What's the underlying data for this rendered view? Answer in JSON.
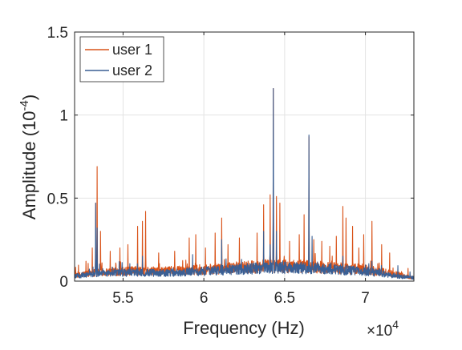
{
  "chart_data": {
    "type": "line",
    "title": "",
    "xlabel": "Frequency (Hz)",
    "x_multiplier_label": "×10",
    "x_multiplier_exponent": "4",
    "ylabel_main": "Amplitude (10",
    "ylabel_exponent": "-4",
    "ylabel_close": ")",
    "xlim": [
      52000,
      73000
    ],
    "ylim": [
      0,
      1.5
    ],
    "y_unit_scale": "1e-4",
    "x_ticks": [
      55000,
      60000,
      65000,
      70000
    ],
    "x_tick_labels": [
      "5.5",
      "6",
      "6.5",
      "7"
    ],
    "y_ticks": [
      0,
      0.5,
      1,
      1.5
    ],
    "y_tick_labels": [
      "0",
      "0.5",
      "1",
      "1.5"
    ],
    "grid": true,
    "legend_position": "top-left",
    "colors": {
      "user 1": "#D95319",
      "user 2": "#3A5F94"
    },
    "series": [
      {
        "name": "user 1",
        "color": "#D95319",
        "baseline": [
          [
            52000,
            0.03
          ],
          [
            53000,
            0.05
          ],
          [
            55000,
            0.06
          ],
          [
            58000,
            0.06
          ],
          [
            60000,
            0.07
          ],
          [
            62000,
            0.08
          ],
          [
            64000,
            0.09
          ],
          [
            66000,
            0.09
          ],
          [
            68000,
            0.08
          ],
          [
            70000,
            0.07
          ],
          [
            72000,
            0.04
          ],
          [
            73000,
            0.02
          ]
        ],
        "peaks": [
          [
            52700,
            0.12
          ],
          [
            53100,
            0.2
          ],
          [
            53300,
            0.47
          ],
          [
            53400,
            0.69
          ],
          [
            53600,
            0.3
          ],
          [
            54200,
            0.18
          ],
          [
            54800,
            0.2
          ],
          [
            55300,
            0.22
          ],
          [
            55900,
            0.33
          ],
          [
            56200,
            0.36
          ],
          [
            56400,
            0.42
          ],
          [
            57200,
            0.17
          ],
          [
            58200,
            0.18
          ],
          [
            59100,
            0.26
          ],
          [
            59500,
            0.28
          ],
          [
            60100,
            0.2
          ],
          [
            60700,
            0.29
          ],
          [
            61100,
            0.38
          ],
          [
            61500,
            0.22
          ],
          [
            62200,
            0.26
          ],
          [
            63300,
            0.29
          ],
          [
            63700,
            0.46
          ],
          [
            64100,
            0.52
          ],
          [
            64300,
            1.16
          ],
          [
            64500,
            0.51
          ],
          [
            64700,
            0.47
          ],
          [
            65300,
            0.24
          ],
          [
            65900,
            0.28
          ],
          [
            66200,
            0.4
          ],
          [
            66500,
            0.87
          ],
          [
            66800,
            0.25
          ],
          [
            67300,
            0.24
          ],
          [
            67800,
            0.21
          ],
          [
            68200,
            0.27
          ],
          [
            68600,
            0.45
          ],
          [
            68800,
            0.38
          ],
          [
            69200,
            0.33
          ],
          [
            69600,
            0.2
          ],
          [
            69900,
            0.28
          ],
          [
            70400,
            0.36
          ],
          [
            71000,
            0.22
          ],
          [
            71500,
            0.17
          ]
        ]
      },
      {
        "name": "user 2",
        "color": "#3A5F94",
        "baseline": [
          [
            52000,
            0.03
          ],
          [
            53000,
            0.04
          ],
          [
            55000,
            0.05
          ],
          [
            58000,
            0.05
          ],
          [
            60000,
            0.06
          ],
          [
            62000,
            0.07
          ],
          [
            64000,
            0.08
          ],
          [
            66000,
            0.08
          ],
          [
            68000,
            0.07
          ],
          [
            70000,
            0.06
          ],
          [
            72000,
            0.03
          ],
          [
            73000,
            0.02
          ]
        ],
        "peaks": [
          [
            53300,
            0.47
          ],
          [
            53400,
            0.32
          ],
          [
            56200,
            0.15
          ],
          [
            59300,
            0.16
          ],
          [
            61100,
            0.25
          ],
          [
            63700,
            0.3
          ],
          [
            64100,
            0.22
          ],
          [
            64300,
            1.16
          ],
          [
            64500,
            0.3
          ],
          [
            66500,
            0.88
          ],
          [
            66700,
            0.27
          ],
          [
            68600,
            0.15
          ],
          [
            70400,
            0.12
          ]
        ]
      }
    ]
  }
}
